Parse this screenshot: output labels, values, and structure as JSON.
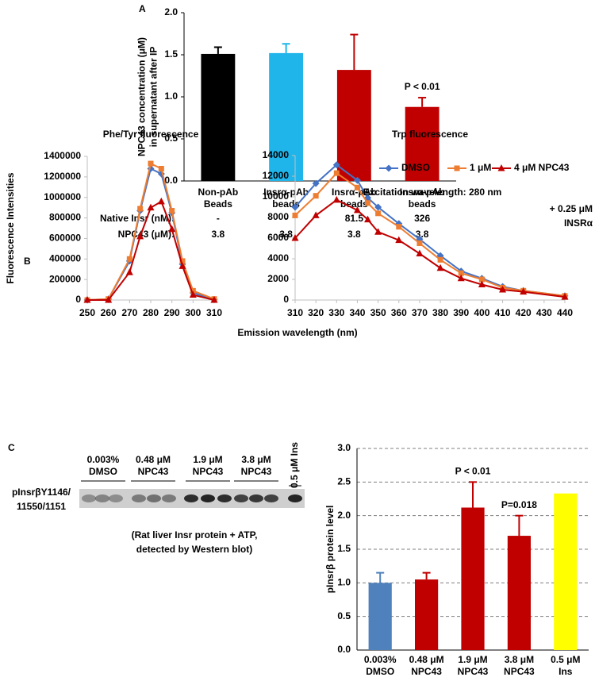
{
  "chart_data": [
    {
      "type": "bar",
      "panel": "A",
      "ylabel": [
        "NPC43 concentration (μM)",
        "in supernatant after IP"
      ],
      "categories": [
        [
          "Non-pAb",
          "Beads"
        ],
        [
          "Insrα-pAb",
          "beads"
        ],
        [
          "Insrα-pAb",
          "beads"
        ],
        [
          "Insrα-pAb",
          "beads"
        ]
      ],
      "values": [
        1.51,
        1.52,
        1.32,
        0.88
      ],
      "errors": [
        0.08,
        0.11,
        0.42,
        0.11
      ],
      "colors": [
        "#000000",
        "#1fb5ea",
        "#c00000",
        "#c00000"
      ],
      "annotations": [
        null,
        null,
        null,
        "P < 0.01"
      ],
      "ylim": [
        0,
        2
      ],
      "yticks": [
        {
          "value": 0,
          "label": "0.0"
        },
        {
          "value": 0.5,
          "label": "0.5"
        },
        {
          "value": 1,
          "label": "1.0"
        },
        {
          "value": 1.5,
          "label": "1.5"
        },
        {
          "value": 2,
          "label": "2.0"
        }
      ],
      "grid": false,
      "rows": [
        {
          "label": "Native Insr (nM):",
          "cells": [
            "-",
            "-",
            "81.5",
            "326"
          ]
        },
        {
          "label": "NPC43 (μM):",
          "cells": [
            "3.8",
            "3.8",
            "3.8",
            "3.8"
          ]
        }
      ]
    },
    {
      "type": "line",
      "panel": "B",
      "title": "Phe/Tyr fluorescence",
      "ylabel": "Fluorescence Intensities",
      "x": [
        250,
        260,
        270,
        275,
        280,
        285,
        290,
        295,
        300,
        310
      ],
      "series": [
        {
          "color": "#4472c4",
          "marker": "diamond",
          "values": [
            0,
            10000,
            380000,
            870000,
            1280000,
            1230000,
            850000,
            350000,
            70000,
            5000
          ]
        },
        {
          "color": "#ed7d31",
          "marker": "square",
          "values": [
            0,
            10000,
            400000,
            890000,
            1330000,
            1280000,
            870000,
            380000,
            90000,
            10000
          ]
        },
        {
          "color": "#c00000",
          "marker": "triangle",
          "values": [
            0,
            0,
            270000,
            620000,
            900000,
            960000,
            690000,
            330000,
            50000,
            0
          ]
        }
      ],
      "xlim": [
        250,
        310
      ],
      "xticks": [
        250,
        260,
        270,
        280,
        290,
        300,
        310
      ],
      "ylim": [
        0,
        1400000
      ],
      "yticks": [
        0,
        200000,
        400000,
        600000,
        800000,
        1000000,
        1200000,
        1400000
      ]
    },
    {
      "type": "line",
      "title": "Trp fluorescence",
      "xlabel": "Emission wavelength (nm)",
      "note": "Excitation wavelength: 280 nm",
      "side_note": [
        "+ 0.25 μM",
        "INSRα"
      ],
      "legend": "top-right",
      "x": [
        310,
        320,
        330,
        340,
        345,
        350,
        360,
        370,
        380,
        390,
        400,
        410,
        420,
        440
      ],
      "series": [
        {
          "name": "DMSO",
          "color": "#4472c4",
          "marker": "diamond",
          "values": [
            9000,
            11300,
            13100,
            11600,
            9900,
            9000,
            7400,
            5900,
            4300,
            2800,
            2100,
            1300,
            900,
            400
          ]
        },
        {
          "name": "1 μM",
          "color": "#ed7d31",
          "marker": "square",
          "values": [
            8200,
            10100,
            12300,
            10900,
            9400,
            8400,
            7100,
            5500,
            3900,
            2600,
            2000,
            1200,
            900,
            400
          ]
        },
        {
          "name": "4 μM NPC43",
          "color": "#c00000",
          "marker": "triangle",
          "values": [
            6000,
            8200,
            9700,
            8700,
            7800,
            6600,
            5800,
            4500,
            3100,
            2100,
            1500,
            1000,
            800,
            300
          ]
        }
      ],
      "xlim": [
        310,
        440
      ],
      "xticks": [
        310,
        320,
        330,
        340,
        350,
        360,
        370,
        380,
        390,
        400,
        410,
        420,
        430,
        440
      ],
      "ylim": [
        0,
        14000
      ],
      "yticks": [
        0,
        2000,
        4000,
        6000,
        8000,
        10000,
        12000,
        14000
      ]
    },
    {
      "type": "bar",
      "panel": "C",
      "ylabel": "pInsrβ protein level",
      "categories": [
        [
          "0.003%",
          "DMSO"
        ],
        [
          "0.48 μM",
          "NPC43"
        ],
        [
          "1.9 μM",
          "NPC43"
        ],
        [
          "3.8 μM",
          "NPC43"
        ],
        [
          "0.5 μM",
          "Ins"
        ]
      ],
      "values": [
        1.0,
        1.05,
        2.12,
        1.7,
        2.33
      ],
      "errors": [
        0.15,
        0.1,
        0.38,
        0.3,
        null
      ],
      "colors": [
        "#4f81bd",
        "#c00000",
        "#c00000",
        "#c00000",
        "#ffff00"
      ],
      "annotations": [
        null,
        null,
        "P < 0.01",
        "P=0.018",
        null
      ],
      "ylim": [
        0,
        3
      ],
      "yticks": [
        {
          "value": 0,
          "label": "0.0"
        },
        {
          "value": 0.5,
          "label": "0.5"
        },
        {
          "value": 1,
          "label": "1.0"
        },
        {
          "value": 1.5,
          "label": "1.5"
        },
        {
          "value": 2,
          "label": "2.0"
        },
        {
          "value": 2.5,
          "label": "2.5"
        },
        {
          "value": 3,
          "label": "3.0"
        }
      ],
      "grid": true,
      "blot": {
        "lanes": [
          [
            "0.003%",
            "DMSO"
          ],
          [
            "0.48 μM",
            "NPC43"
          ],
          [
            "1.9 μM",
            "NPC43"
          ],
          [
            "3.8 μM",
            "NPC43"
          ],
          [
            "0.5 μM Ins"
          ]
        ],
        "row_label": [
          "pInsrβY1146/",
          "11550/1151"
        ],
        "caption": [
          "(Rat liver Insr protein + ATP,",
          "detected by Western blot)"
        ]
      }
    }
  ]
}
